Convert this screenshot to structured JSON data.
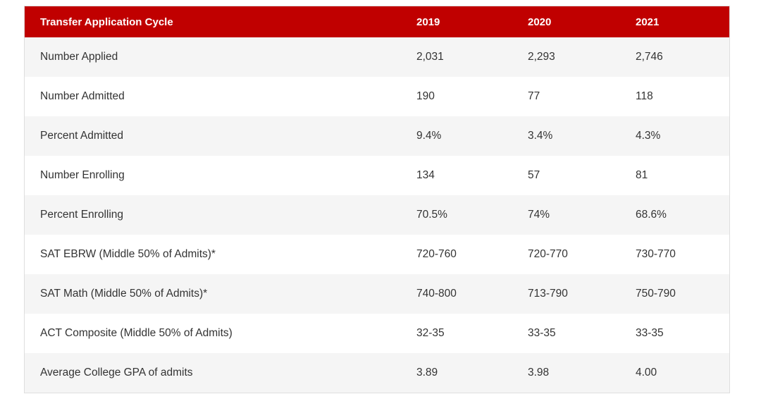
{
  "colors": {
    "header_bg": "#c00000",
    "header_text": "#ffffff",
    "stripe_bg": "#f5f5f5",
    "row_bg": "#ffffff",
    "cell_text": "#333333"
  },
  "table": {
    "headers": [
      "Transfer Application Cycle",
      "2019",
      "2020",
      "2021"
    ],
    "rows": [
      [
        "Number Applied",
        "2,031",
        "2,293",
        "2,746"
      ],
      [
        "Number Admitted",
        "190",
        "77",
        "118"
      ],
      [
        "Percent Admitted",
        "9.4%",
        "3.4%",
        "4.3%"
      ],
      [
        "Number Enrolling",
        "134",
        "57",
        "81"
      ],
      [
        "Percent Enrolling",
        "70.5%",
        "74%",
        "68.6%"
      ],
      [
        "SAT EBRW (Middle 50% of Admits)*",
        "720-760",
        "720-770",
        "730-770"
      ],
      [
        "SAT Math (Middle 50% of Admits)*",
        "740-800",
        "713-790",
        "750-790"
      ],
      [
        "ACT Composite (Middle 50% of Admits)",
        "32-35",
        "33-35",
        "33-35"
      ],
      [
        "Average College GPA of admits",
        "3.89",
        "3.98",
        "4.00"
      ]
    ]
  }
}
